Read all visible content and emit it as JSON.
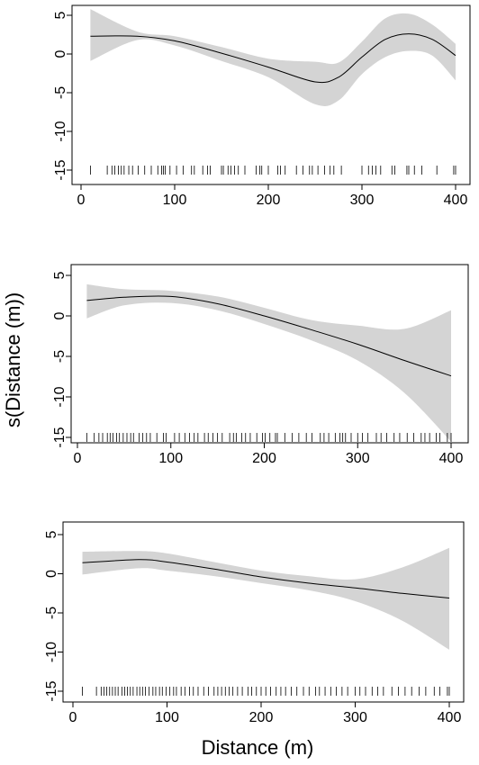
{
  "xlabel": "Distance (m)",
  "ylabel": "s(Distance (m))",
  "chart_data": [
    {
      "type": "line",
      "xlim": [
        0,
        400
      ],
      "ylim": [
        -15,
        5
      ],
      "x_ticks": [
        "0",
        "100",
        "200",
        "300",
        "400"
      ],
      "y_ticks": [
        "5",
        "0",
        "-5",
        "-10",
        "-15"
      ],
      "series": [
        {
          "x": [
            10,
            60,
            100,
            150,
            200,
            250,
            275,
            300,
            325,
            350,
            375,
            400
          ],
          "y": [
            2.3,
            2.3,
            1.7,
            0.1,
            -1.7,
            -3.6,
            -3.0,
            -0.4,
            1.9,
            2.6,
            1.9,
            -0.2
          ]
        }
      ],
      "band_upper": [
        5.8,
        2.9,
        2.3,
        0.9,
        -0.6,
        -1.0,
        -1.1,
        1.6,
        4.6,
        5.2,
        3.8,
        1.3
      ],
      "band_lower": [
        -0.9,
        1.8,
        1.1,
        -0.9,
        -3.0,
        -6.5,
        -6.0,
        -2.6,
        -0.4,
        0.4,
        -0.2,
        -3.4
      ],
      "rug": [
        10,
        28,
        33,
        36,
        40,
        43,
        46,
        51,
        55,
        61,
        68,
        75,
        82,
        86,
        88,
        90,
        95,
        102,
        109,
        118,
        121,
        130,
        135,
        138,
        150,
        152,
        157,
        160,
        164,
        168,
        175,
        187,
        191,
        193,
        200,
        210,
        213,
        218,
        230,
        237,
        244,
        247,
        253,
        260,
        266,
        270,
        278,
        300,
        307,
        311,
        315,
        320,
        332,
        335,
        348,
        350,
        356,
        364,
        380,
        398,
        400
      ]
    },
    {
      "type": "line",
      "xlim": [
        0,
        400
      ],
      "ylim": [
        -15,
        5
      ],
      "x_ticks": [
        "0",
        "100",
        "200",
        "300",
        "400"
      ],
      "y_ticks": [
        "5",
        "0",
        "-5",
        "-10",
        "-15"
      ],
      "series": [
        {
          "x": [
            10,
            50,
            100,
            150,
            200,
            250,
            300,
            350,
            400
          ],
          "y": [
            1.9,
            2.3,
            2.4,
            1.5,
            0.0,
            -1.7,
            -3.5,
            -5.5,
            -7.4
          ]
        }
      ],
      "band_upper": [
        3.9,
        3.3,
        3.1,
        2.4,
        1.0,
        -0.5,
        -1.2,
        -1.6,
        0.7
      ],
      "band_lower": [
        -0.3,
        1.3,
        1.6,
        0.7,
        -1.0,
        -3.0,
        -5.5,
        -9.5,
        -15.5
      ],
      "rug": [
        10,
        18,
        23,
        27,
        32,
        35,
        38,
        42,
        45,
        49,
        53,
        57,
        60,
        66,
        70,
        74,
        78,
        85,
        92,
        95,
        104,
        109,
        115,
        120,
        125,
        129,
        136,
        140,
        145,
        150,
        155,
        163,
        167,
        170,
        176,
        180,
        185,
        192,
        198,
        201,
        206,
        212,
        214,
        222,
        230,
        237,
        245,
        251,
        260,
        264,
        269,
        276,
        281,
        284,
        287,
        293,
        300,
        305,
        311,
        320,
        325,
        331,
        339,
        345,
        353,
        360,
        368,
        372,
        377,
        384,
        388,
        396,
        400
      ]
    },
    {
      "type": "line",
      "xlim": [
        0,
        400
      ],
      "ylim": [
        -15,
        5
      ],
      "x_ticks": [
        "0",
        "100",
        "200",
        "300",
        "400"
      ],
      "y_ticks": [
        "5",
        "0",
        "-5",
        "-10",
        "-15"
      ],
      "series": [
        {
          "x": [
            10,
            70,
            100,
            150,
            200,
            250,
            300,
            350,
            400
          ],
          "y": [
            1.4,
            1.8,
            1.5,
            0.6,
            -0.4,
            -1.2,
            -1.8,
            -2.5,
            -3.1
          ]
        }
      ],
      "band_upper": [
        2.8,
        2.9,
        2.6,
        1.5,
        0.4,
        -0.3,
        -0.7,
        0.8,
        3.3
      ],
      "band_lower": [
        -0.1,
        0.7,
        0.4,
        -0.3,
        -1.2,
        -2.1,
        -3.5,
        -6.0,
        -9.7
      ],
      "rug": [
        10,
        25,
        30,
        33,
        36,
        39,
        42,
        45,
        48,
        52,
        55,
        58,
        61,
        64,
        68,
        71,
        74,
        77,
        81,
        85,
        88,
        92,
        95,
        99,
        103,
        107,
        110,
        115,
        119,
        124,
        128,
        133,
        139,
        144,
        150,
        154,
        158,
        162,
        166,
        170,
        175,
        180,
        186,
        190,
        195,
        200,
        205,
        210,
        216,
        221,
        226,
        232,
        238,
        245,
        251,
        258,
        262,
        268,
        274,
        280,
        286,
        292,
        300,
        305,
        311,
        318,
        324,
        330,
        339,
        346,
        353,
        360,
        368,
        375,
        384,
        390,
        398,
        400
      ]
    }
  ]
}
